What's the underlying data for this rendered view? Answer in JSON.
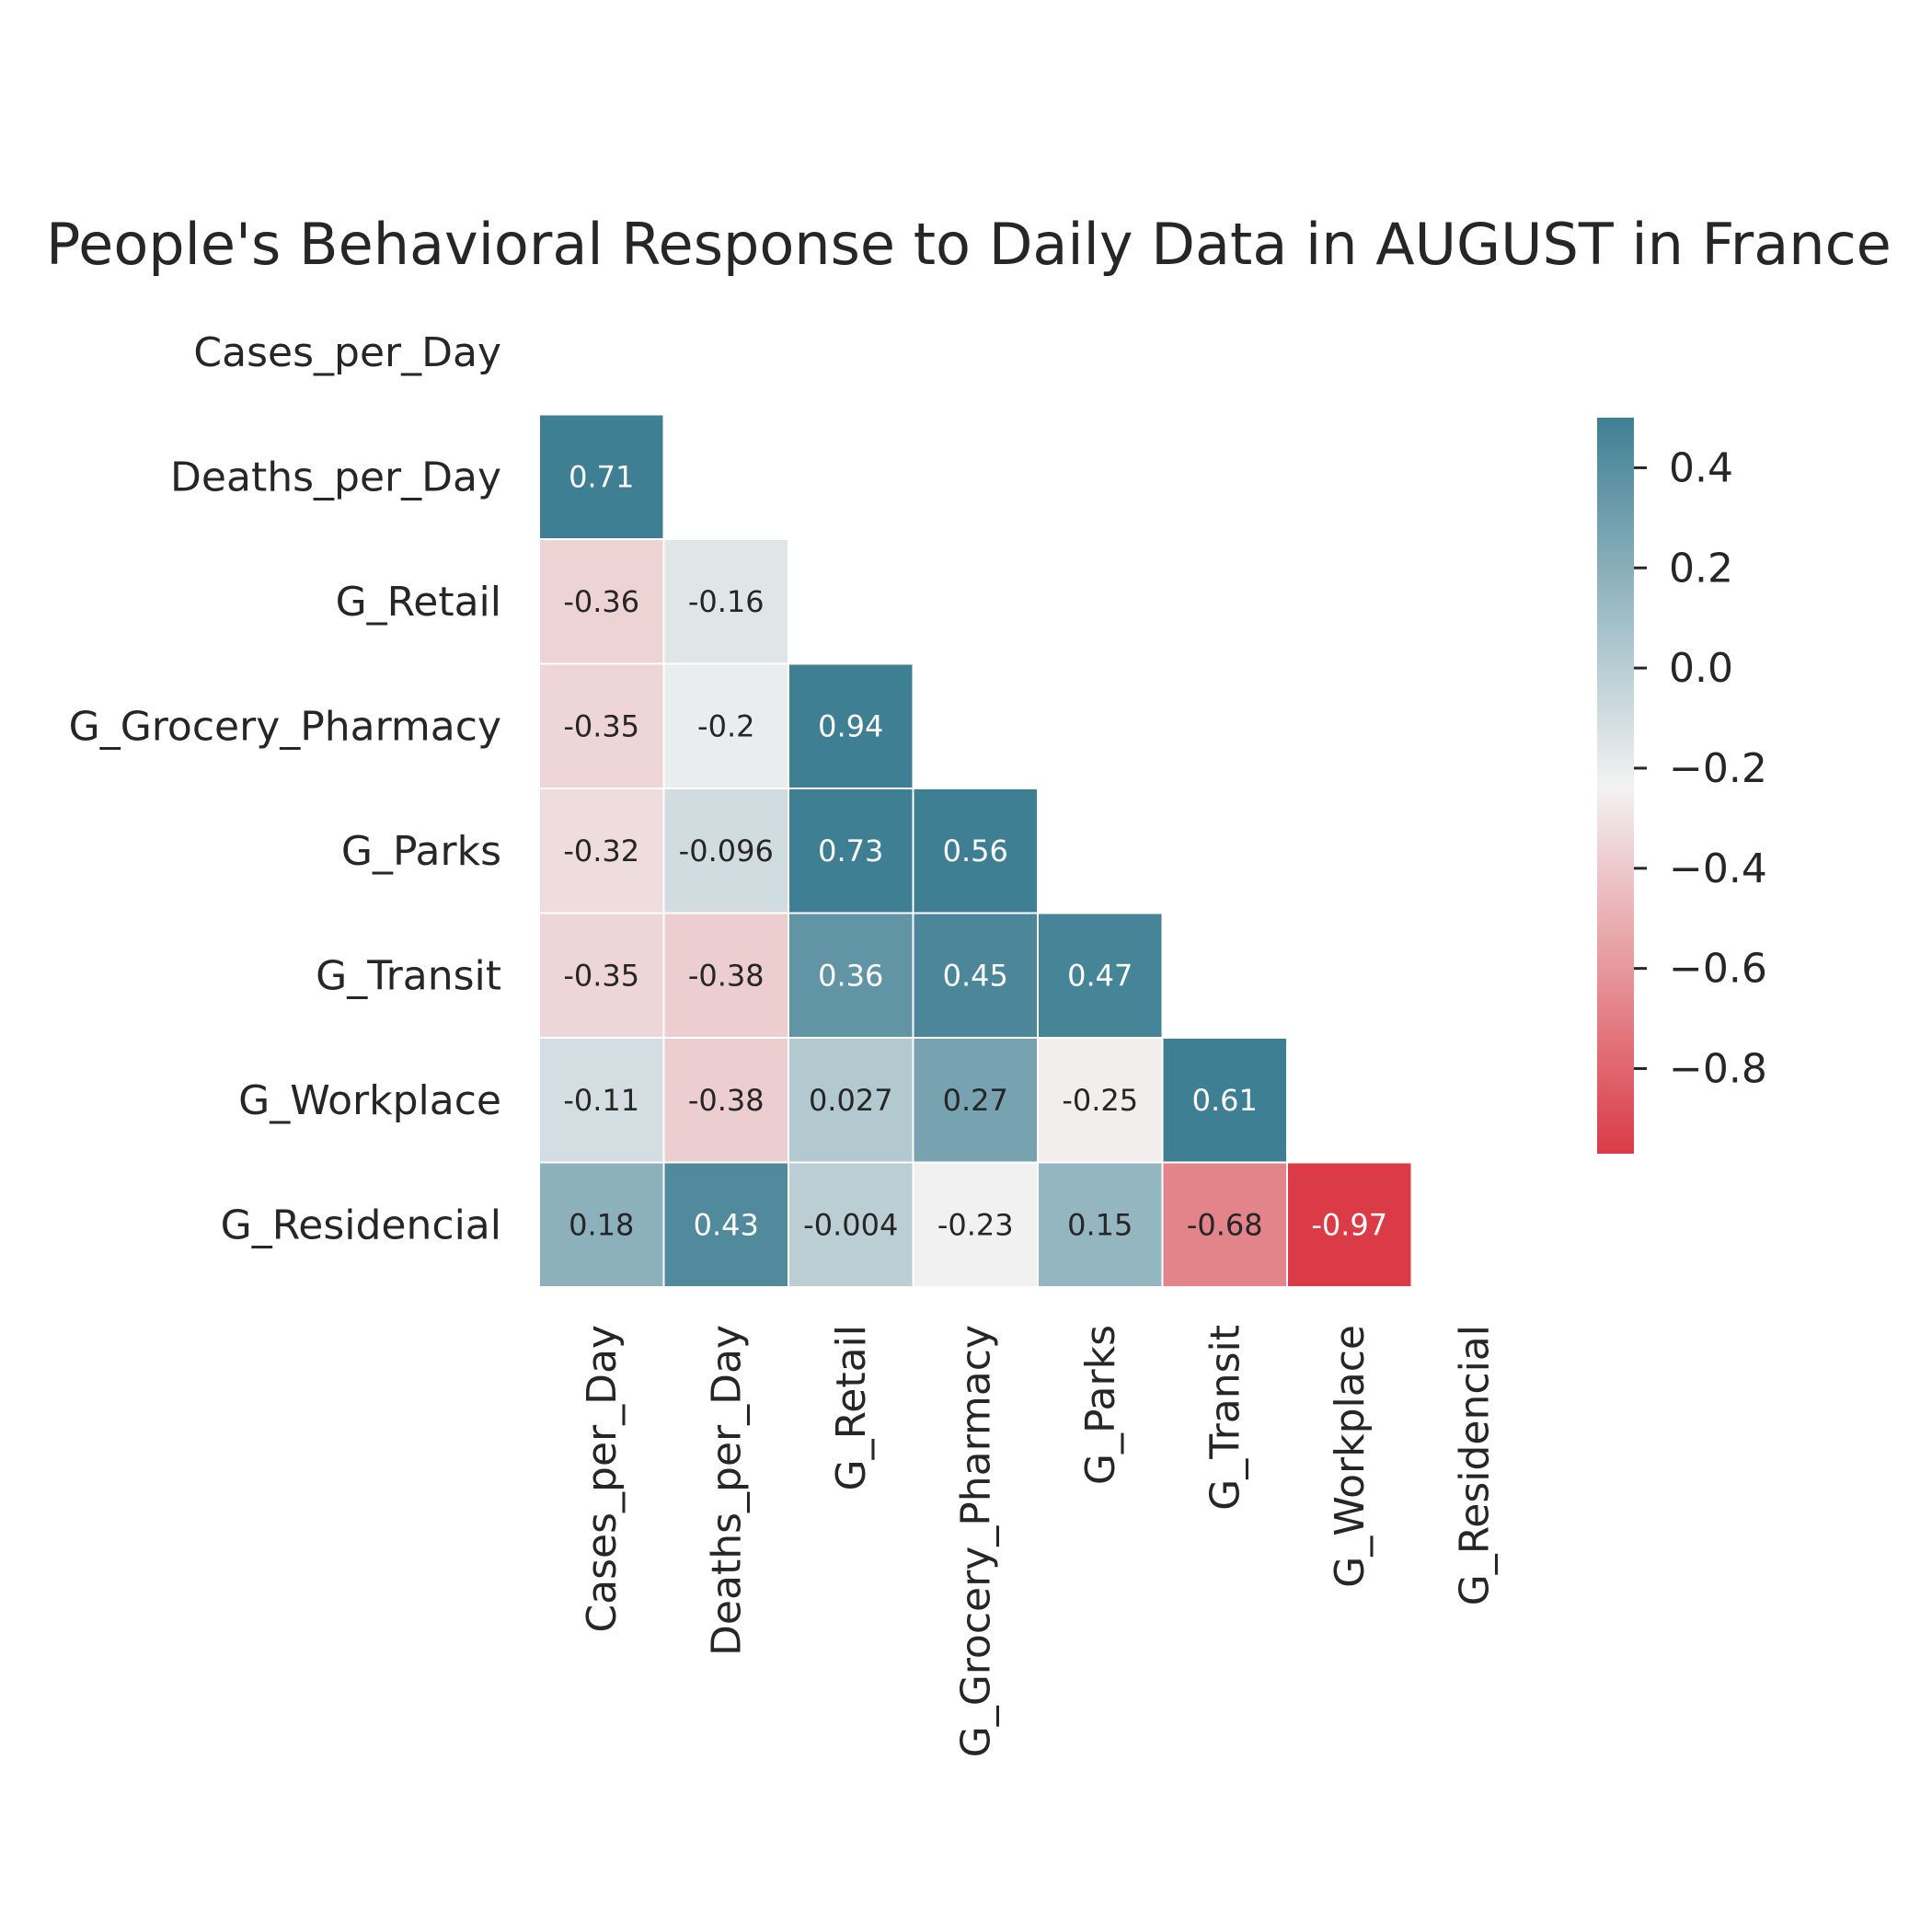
{
  "chart_data": {
    "type": "heatmap",
    "title": "People's Behavioral Response to Daily Data in AUGUST in France",
    "variables": [
      "Cases_per_Day",
      "Deaths_per_Day",
      "G_Retail",
      "G_Grocery_Pharmacy",
      "G_Parks",
      "G_Transit",
      "G_Workplace",
      "G_Residencial"
    ],
    "cells": [
      {
        "row": 1,
        "col": 0,
        "value": 0.71,
        "label": "0.71"
      },
      {
        "row": 2,
        "col": 0,
        "value": -0.36,
        "label": "-0.36"
      },
      {
        "row": 2,
        "col": 1,
        "value": -0.16,
        "label": "-0.16"
      },
      {
        "row": 3,
        "col": 0,
        "value": -0.35,
        "label": "-0.35"
      },
      {
        "row": 3,
        "col": 1,
        "value": -0.2,
        "label": "-0.2"
      },
      {
        "row": 3,
        "col": 2,
        "value": 0.94,
        "label": "0.94"
      },
      {
        "row": 4,
        "col": 0,
        "value": -0.32,
        "label": "-0.32"
      },
      {
        "row": 4,
        "col": 1,
        "value": -0.096,
        "label": "-0.096"
      },
      {
        "row": 4,
        "col": 2,
        "value": 0.73,
        "label": "0.73"
      },
      {
        "row": 4,
        "col": 3,
        "value": 0.56,
        "label": "0.56"
      },
      {
        "row": 5,
        "col": 0,
        "value": -0.35,
        "label": "-0.35"
      },
      {
        "row": 5,
        "col": 1,
        "value": -0.38,
        "label": "-0.38"
      },
      {
        "row": 5,
        "col": 2,
        "value": 0.36,
        "label": "0.36"
      },
      {
        "row": 5,
        "col": 3,
        "value": 0.45,
        "label": "0.45"
      },
      {
        "row": 5,
        "col": 4,
        "value": 0.47,
        "label": "0.47"
      },
      {
        "row": 6,
        "col": 0,
        "value": -0.11,
        "label": "-0.11"
      },
      {
        "row": 6,
        "col": 1,
        "value": -0.38,
        "label": "-0.38"
      },
      {
        "row": 6,
        "col": 2,
        "value": 0.027,
        "label": "0.027"
      },
      {
        "row": 6,
        "col": 3,
        "value": 0.27,
        "label": "0.27"
      },
      {
        "row": 6,
        "col": 4,
        "value": -0.25,
        "label": "-0.25"
      },
      {
        "row": 6,
        "col": 5,
        "value": 0.61,
        "label": "0.61"
      },
      {
        "row": 7,
        "col": 0,
        "value": 0.18,
        "label": "0.18"
      },
      {
        "row": 7,
        "col": 1,
        "value": 0.43,
        "label": "0.43"
      },
      {
        "row": 7,
        "col": 2,
        "value": -0.004,
        "label": "-0.004"
      },
      {
        "row": 7,
        "col": 3,
        "value": -0.23,
        "label": "-0.23"
      },
      {
        "row": 7,
        "col": 4,
        "value": 0.15,
        "label": "0.15"
      },
      {
        "row": 7,
        "col": 5,
        "value": -0.68,
        "label": "-0.68"
      },
      {
        "row": 7,
        "col": 6,
        "value": -0.97,
        "label": "-0.97"
      }
    ],
    "mask": "upper-triangle-including-diagonal",
    "colorbar": {
      "vmin": -0.97,
      "vmax": 0.5,
      "ticks": [
        0.4,
        0.2,
        0.0,
        -0.2,
        -0.4,
        -0.6,
        -0.8
      ],
      "tick_labels": [
        "0.4",
        "0.2",
        "0.0",
        "−0.2",
        "−0.4",
        "−0.6",
        "−0.8"
      ]
    },
    "colors": {
      "negative_end": "#da3b46",
      "center": "#f2f2f2",
      "positive_end": "#3f7f93",
      "cell_border": "#ffffff",
      "text_dark": "#262626",
      "text_light": "#ffffff"
    },
    "grid": false
  }
}
